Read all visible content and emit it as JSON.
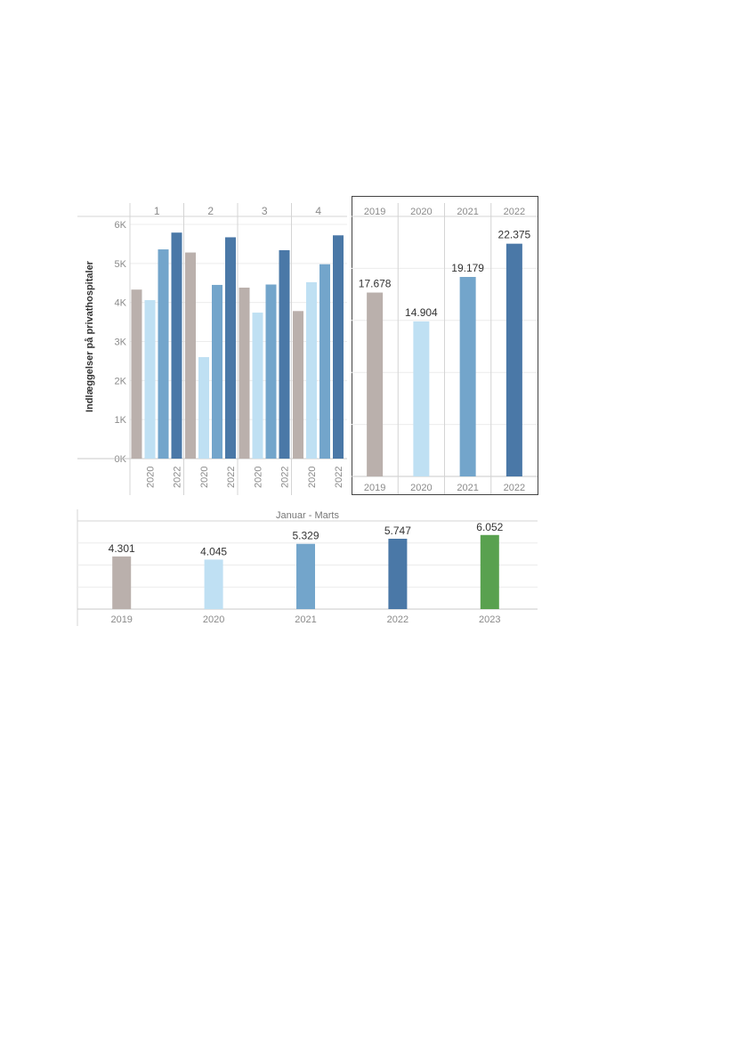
{
  "chart_data": [
    {
      "type": "bar",
      "ylabel": "Indlæggelser på privathospitaler",
      "yticks": [
        "0K",
        "1K",
        "2K",
        "3K",
        "4K",
        "5K",
        "6K"
      ],
      "ylim": [
        0,
        6000
      ],
      "grid": true,
      "quarters": [
        "1",
        "2",
        "3",
        "4"
      ],
      "years": [
        "2019",
        "2020",
        "2021",
        "2022"
      ],
      "x_tick_labels": [
        "2020",
        "2022"
      ],
      "series": [
        {
          "name": "2019",
          "color": "#bab0ac",
          "values": [
            4330,
            5280,
            4380,
            3780
          ]
        },
        {
          "name": "2020",
          "color": "#bfe0f3",
          "values": [
            4060,
            2600,
            3740,
            4520
          ]
        },
        {
          "name": "2021",
          "color": "#73a5cb",
          "values": [
            5360,
            4450,
            4460,
            4980
          ]
        },
        {
          "name": "2022",
          "color": "#4a78a7",
          "values": [
            5790,
            5670,
            5340,
            5720
          ]
        }
      ]
    },
    {
      "type": "bar",
      "categories": [
        "2019",
        "2020",
        "2021",
        "2022"
      ],
      "values": [
        17678,
        14904,
        19179,
        22375
      ],
      "data_labels": [
        "17.678",
        "14.904",
        "19.179",
        "22.375"
      ],
      "colors": [
        "#bab0ac",
        "#bfe0f3",
        "#73a5cb",
        "#4a78a7"
      ],
      "ylim": [
        0,
        25000
      ],
      "grid": true
    },
    {
      "type": "bar",
      "title": "Januar - Marts",
      "categories": [
        "2019",
        "2020",
        "2021",
        "2022",
        "2023"
      ],
      "values": [
        4301,
        4045,
        5329,
        5747,
        6052
      ],
      "data_labels": [
        "4.301",
        "4.045",
        "5.329",
        "5.747",
        "6.052"
      ],
      "colors": [
        "#bab0ac",
        "#bfe0f3",
        "#73a5cb",
        "#4a78a7",
        "#59a14f"
      ],
      "ylim": [
        0,
        7200
      ],
      "grid": true
    }
  ]
}
